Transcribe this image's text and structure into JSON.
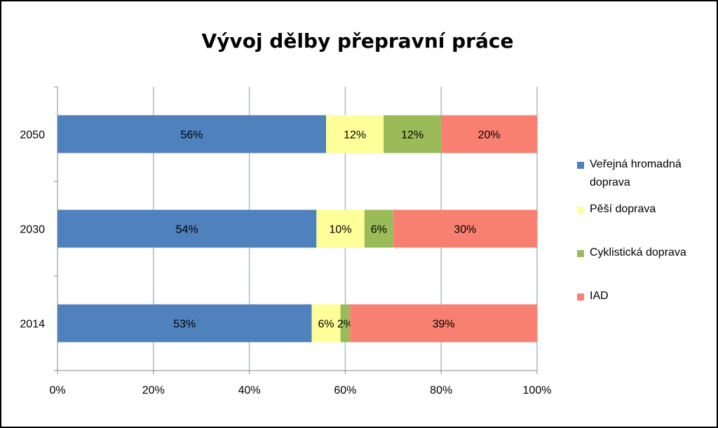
{
  "chart_data": {
    "type": "bar",
    "orientation": "horizontal",
    "stacked": "percent",
    "title": "Vývoj dělby přepravní práce",
    "categories": [
      "2050",
      "2030",
      "2014"
    ],
    "series": [
      {
        "name": "Veřejná hromadná doprava",
        "color": "#4F81BD",
        "values": [
          56,
          54,
          53
        ]
      },
      {
        "name": "Pěší doprava",
        "color": "#FFFF99",
        "values": [
          12,
          10,
          6
        ]
      },
      {
        "name": "Cyklistická doprava",
        "color": "#9BBB59",
        "values": [
          12,
          6,
          2
        ]
      },
      {
        "name": "IAD",
        "color": "#F88070",
        "values": [
          20,
          30,
          39
        ]
      }
    ],
    "xlim": [
      0,
      100
    ],
    "x_ticks": [
      "0%",
      "20%",
      "40%",
      "60%",
      "80%",
      "100%"
    ],
    "grid": "vertical",
    "legend": "right"
  }
}
